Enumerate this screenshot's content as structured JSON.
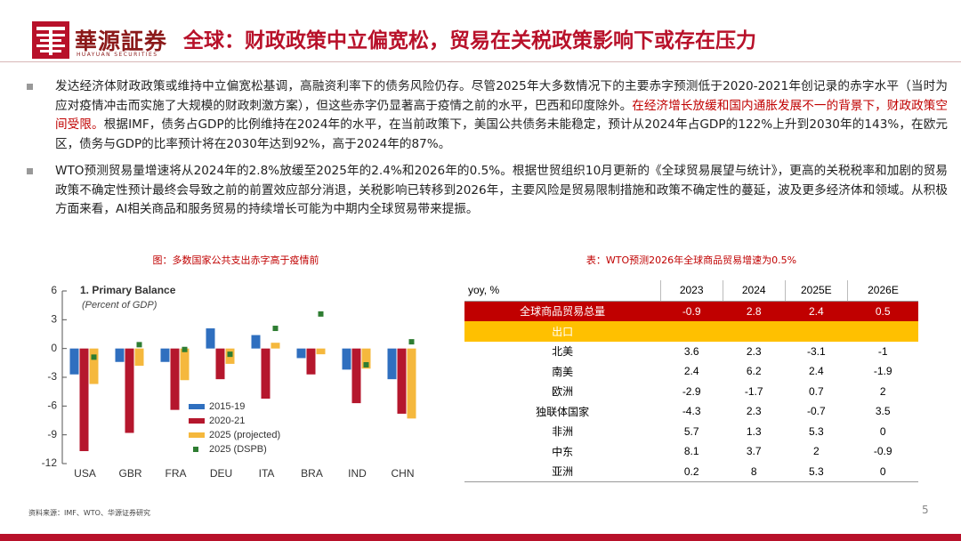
{
  "header": {
    "brand": "華源証券",
    "brand_en": "HUAYUAN SECURITIES",
    "title": "全球：财政政策中立偏宽松，贸易在关税政策影响下或存在压力"
  },
  "bullets": [
    [
      "发达经济体财政政策或维持中立偏宽松基调，高融资利率下的债务风险仍存。尽管2025年大多数情况下的主要赤字预测低于2020-2021年创记录的赤字水平（当时为应对疫情冲击而实施了大规模的财政刺激方案），但这些赤字仍显著高于疫情之前的水平，巴西和印度除外。",
      "在经济增长放缓和国内通胀发展不一的背景下，财政政策空间受限。",
      "根据IMF，债务占GDP的比例维持在2024年的水平，在当前政策下，美国公共债务未能稳定，预计从2024年占GDP的122%上升到2030年的143%，在欧元区，债务与GDP的比率预计将在2030年达到92%，高于2024年的87%。"
    ],
    [
      "WTO预测贸易量增速将从2024年的2.8%放缓至2025年的2.4%和2026年的0.5%。根据世贸组织10月更新的《全球贸易展望与统计》，更高的关税税率和加剧的贸易政策不确定性预计最终会导致之前的前置效应部分消退，关税影响已转移到2026年，主要风险是贸易限制措施和政策不确定性的蔓延，波及更多经济体和领域。从积极方面来看，AI相关商品和服务贸易的持续增长可能为中期内全球贸易带来提振。"
    ]
  ],
  "chart_caption": "图：多数国家公共支出赤字高于疫情前",
  "chart_data": {
    "type": "bar",
    "title": "1. Primary Balance",
    "subtitle": "(Percent of GDP)",
    "categories": [
      "USA",
      "GBR",
      "FRA",
      "DEU",
      "ITA",
      "BRA",
      "IND",
      "CHN"
    ],
    "series": [
      {
        "name": "2015-19",
        "color": "#2f6fbf",
        "mark": "bar",
        "values": [
          -2.7,
          -1.4,
          -1.4,
          2.1,
          1.4,
          -1.0,
          -2.2,
          -3.2
        ]
      },
      {
        "name": "2020-21",
        "color": "#b5172d",
        "mark": "bar",
        "values": [
          -10.7,
          -8.8,
          -6.4,
          -3.2,
          -5.8,
          -2.7,
          -5.7,
          -6.8
        ]
      },
      {
        "name": "2025 (projected)",
        "color": "#f5b83d",
        "mark": "bar",
        "values": [
          -3.7,
          -1.8,
          -3.3,
          -1.6,
          0.6,
          -0.6,
          -2.1,
          -7.3
        ]
      },
      {
        "name": "2025 (DSPB)",
        "color": "#2e7d32",
        "mark": "square",
        "values": [
          -0.9,
          0.4,
          -0.1,
          -0.6,
          2.1,
          3.6,
          -1.7,
          0.7
        ]
      }
    ],
    "ylim": [
      -12,
      6
    ],
    "yticks": [
      6,
      3,
      0,
      -3,
      -6,
      -9,
      -12
    ]
  },
  "table_caption": "表：WTO预测2026年全球商品贸易增速为0.5%",
  "table": {
    "headers": [
      "yoy, %",
      "2023",
      "2024",
      "2025E",
      "2026E"
    ],
    "rows": [
      {
        "label": "全球商品贸易总量",
        "fill": "#c00000",
        "cells": [
          "-0.9",
          "2.8",
          "2.4",
          "0.5"
        ]
      },
      {
        "label": "出口",
        "fill": "#ffc000"
      },
      {
        "label": "北美",
        "cells": [
          "3.6",
          "2.3",
          "-3.1",
          "-1"
        ]
      },
      {
        "label": "南美",
        "cells": [
          "2.4",
          "6.2",
          "2.4",
          "-1.9"
        ]
      },
      {
        "label": "欧洲",
        "cells": [
          "-2.9",
          "-1.7",
          "0.7",
          "2"
        ]
      },
      {
        "label": "独联体国家",
        "cells": [
          "-4.3",
          "2.3",
          "-0.7",
          "3.5"
        ]
      },
      {
        "label": "非洲",
        "cells": [
          "5.7",
          "1.3",
          "5.3",
          "0"
        ]
      },
      {
        "label": "中东",
        "cells": [
          "8.1",
          "3.7",
          "2",
          "-0.9"
        ]
      },
      {
        "label": "亚洲",
        "cells": [
          "0.2",
          "8",
          "5.3",
          "0"
        ]
      }
    ]
  },
  "footer": {
    "source": "资料来源：IMF、WTO、华源证券研究",
    "page": "5"
  }
}
